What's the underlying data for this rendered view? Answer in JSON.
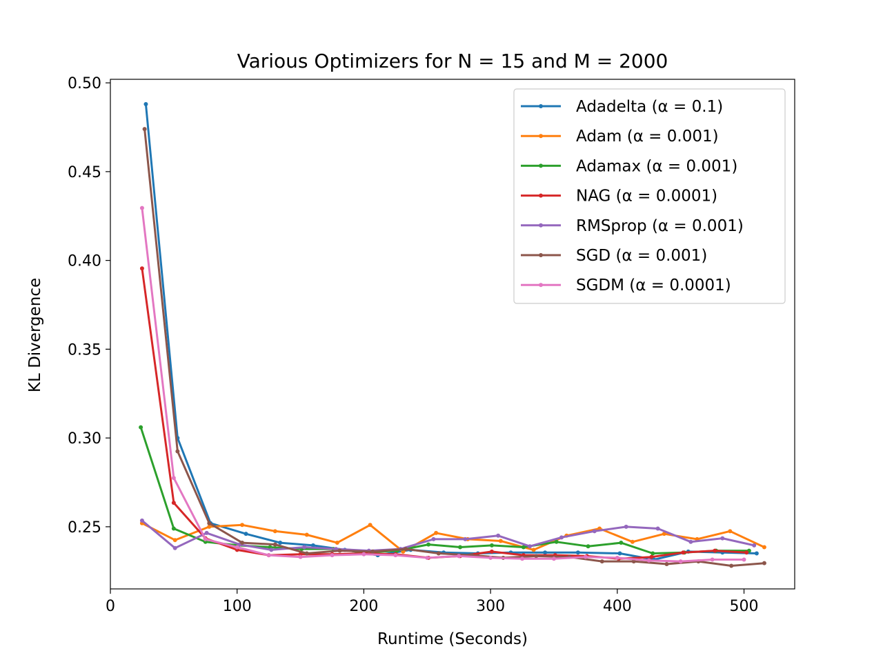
{
  "chart_data": {
    "type": "line",
    "title": "Various Optimizers for N = 15 and M = 2000",
    "xlabel": "Runtime (Seconds)",
    "ylabel": "KL Divergence",
    "xlim": [
      0,
      540
    ],
    "ylim": [
      0.215,
      0.502
    ],
    "x_ticks": [
      0,
      100,
      200,
      300,
      400,
      500
    ],
    "x_tick_labels": [
      "0",
      "100",
      "200",
      "300",
      "400",
      "500"
    ],
    "y_ticks": [
      0.25,
      0.3,
      0.35,
      0.4,
      0.45,
      0.5
    ],
    "y_tick_labels": [
      "0.25",
      "0.30",
      "0.35",
      "0.40",
      "0.45",
      "0.50"
    ],
    "grid": false,
    "legend_position": "top-right",
    "series": [
      {
        "name": "Adadelta (α = 0.1)",
        "color": "#1f77b4",
        "x": [
          28,
          53,
          79,
          107,
          134,
          160,
          185,
          211,
          237,
          263,
          290,
          316,
          343,
          369,
          402,
          429,
          456,
          483,
          510
        ],
        "y": [
          0.488,
          0.3,
          0.252,
          0.246,
          0.241,
          0.2395,
          0.237,
          0.234,
          0.237,
          0.2355,
          0.235,
          0.2355,
          0.2355,
          0.2355,
          0.235,
          0.2315,
          0.236,
          0.2355,
          0.235
        ]
      },
      {
        "name": "Adam (α = 0.001)",
        "color": "#ff7f0e",
        "x": [
          25,
          51,
          78,
          104,
          130,
          155,
          179,
          205,
          231,
          257,
          282,
          308,
          334,
          360,
          386,
          412,
          437,
          463,
          489,
          516
        ],
        "y": [
          0.252,
          0.2425,
          0.25,
          0.251,
          0.2475,
          0.2455,
          0.241,
          0.251,
          0.236,
          0.2465,
          0.243,
          0.242,
          0.237,
          0.245,
          0.249,
          0.2415,
          0.246,
          0.243,
          0.2475,
          0.2385
        ]
      },
      {
        "name": "Adamax (α = 0.001)",
        "color": "#2ca02c",
        "x": [
          24,
          50,
          75,
          101,
          126,
          151,
          176,
          201,
          226,
          251,
          276,
          301,
          326,
          352,
          377,
          403,
          428,
          453,
          478,
          504
        ],
        "y": [
          0.306,
          0.249,
          0.2415,
          0.2395,
          0.2385,
          0.2375,
          0.2375,
          0.2355,
          0.2365,
          0.24,
          0.2385,
          0.2395,
          0.2385,
          0.2415,
          0.239,
          0.241,
          0.235,
          0.2355,
          0.2365,
          0.2365
        ]
      },
      {
        "name": "NAG (α = 0.0001)",
        "color": "#d62728",
        "x": [
          25,
          50,
          75,
          100,
          125,
          150,
          175,
          200,
          225,
          251,
          276,
          301,
          326,
          351,
          376,
          401,
          427,
          452,
          477,
          502
        ],
        "y": [
          0.3955,
          0.2635,
          0.2435,
          0.237,
          0.234,
          0.2345,
          0.2345,
          0.235,
          0.2345,
          0.2325,
          0.2335,
          0.236,
          0.234,
          0.234,
          0.2335,
          0.232,
          0.233,
          0.2355,
          0.2365,
          0.2355
        ]
      },
      {
        "name": "RMSprop (α = 0.001)",
        "color": "#9467bd",
        "x": [
          25,
          51,
          76,
          102,
          127,
          153,
          178,
          204,
          229,
          255,
          280,
          306,
          331,
          356,
          382,
          407,
          432,
          458,
          483,
          508
        ],
        "y": [
          0.2535,
          0.238,
          0.2465,
          0.24,
          0.237,
          0.2385,
          0.2375,
          0.2365,
          0.2375,
          0.243,
          0.243,
          0.245,
          0.239,
          0.244,
          0.2475,
          0.25,
          0.249,
          0.2415,
          0.2435,
          0.2395
        ]
      },
      {
        "name": "SGD (α = 0.001)",
        "color": "#8c564b",
        "x": [
          27,
          53,
          78,
          104,
          130,
          155,
          181,
          207,
          233,
          259,
          285,
          310,
          336,
          362,
          388,
          413,
          439,
          464,
          490,
          516
        ],
        "y": [
          0.474,
          0.2925,
          0.252,
          0.241,
          0.24,
          0.235,
          0.2365,
          0.236,
          0.2375,
          0.235,
          0.234,
          0.2325,
          0.2335,
          0.233,
          0.2305,
          0.2305,
          0.229,
          0.2305,
          0.228,
          0.2295
        ]
      },
      {
        "name": "SGDM (α = 0.0001)",
        "color": "#e377c2",
        "x": [
          25,
          50,
          75,
          100,
          125,
          150,
          175,
          200,
          225,
          250,
          275,
          300,
          325,
          350,
          375,
          400,
          425,
          450,
          475,
          500
        ],
        "y": [
          0.4295,
          0.2775,
          0.243,
          0.2385,
          0.234,
          0.233,
          0.234,
          0.2345,
          0.234,
          0.2325,
          0.2335,
          0.2325,
          0.232,
          0.232,
          0.233,
          0.2325,
          0.231,
          0.2305,
          0.2315,
          0.2315
        ]
      }
    ]
  }
}
